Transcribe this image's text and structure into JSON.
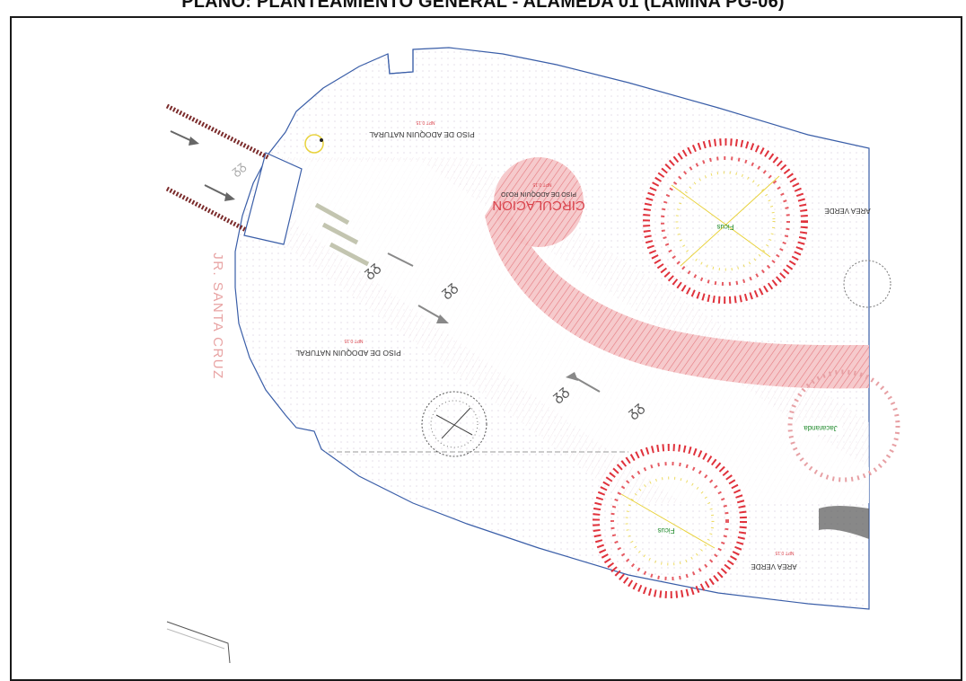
{
  "title": "PLANO: PLANTEAMIENTO GENERAL - ALAMEDA 01 (LAMINA PG-06)",
  "street_label": "JR. SANTA CRUZ",
  "labels": {
    "paving_natural_top": "PISO DE ADOQUIN NATURAL",
    "paving_natural_bottom": "PISO DE ADOQUIN NATURAL",
    "circulation_title": "CIRCULACION",
    "circulation_sub": "PISO DE ADOQUIN ROJO",
    "green_area_right": "AREA VERDE",
    "green_area_bottom": "AREA VERDE",
    "level_tag": "NPT 0.15"
  },
  "tree_labels": {
    "tree_top": "Ficus",
    "tree_bottom": "Ficus",
    "tree_right": "Jacaranda"
  },
  "colors": {
    "outline": "#3a5ea8",
    "circulation": "#d9424b",
    "tree_red": "#e0323c",
    "tree_yellow": "#e8d23c",
    "hatch_dark": "#7a2a2a",
    "street_text": "#e8a3a3",
    "tree_label_green": "#1f8a2b"
  }
}
